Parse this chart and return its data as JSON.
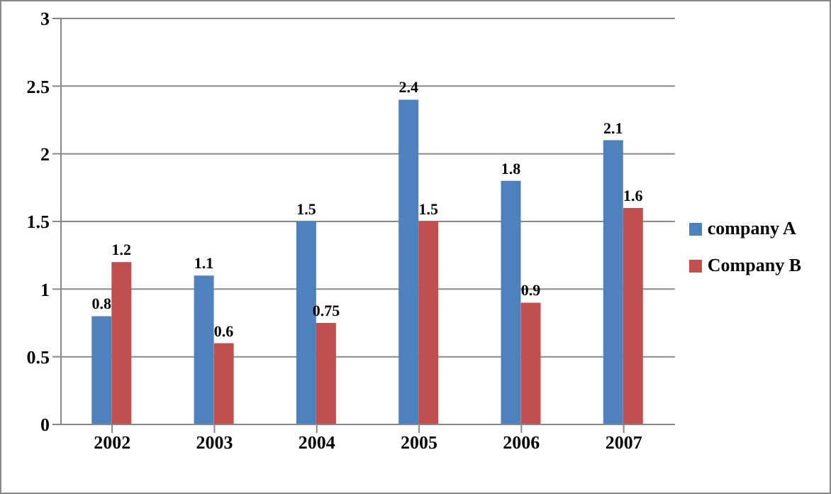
{
  "chart_data": {
    "type": "bar",
    "categories": [
      "2002",
      "2003",
      "2004",
      "2005",
      "2006",
      "2007"
    ],
    "series": [
      {
        "name": "company A",
        "color": "#4f81bd",
        "values": [
          0.8,
          1.1,
          1.5,
          2.4,
          1.8,
          2.1
        ]
      },
      {
        "name": "Company B",
        "color": "#c0504d",
        "values": [
          1.2,
          0.6,
          0.75,
          1.5,
          0.9,
          1.6
        ]
      }
    ],
    "ylim": [
      0,
      3
    ],
    "yticks": [
      0,
      0.5,
      1,
      1.5,
      2,
      2.5,
      3
    ],
    "grid": "y",
    "legend": "right",
    "data_labels": true
  }
}
